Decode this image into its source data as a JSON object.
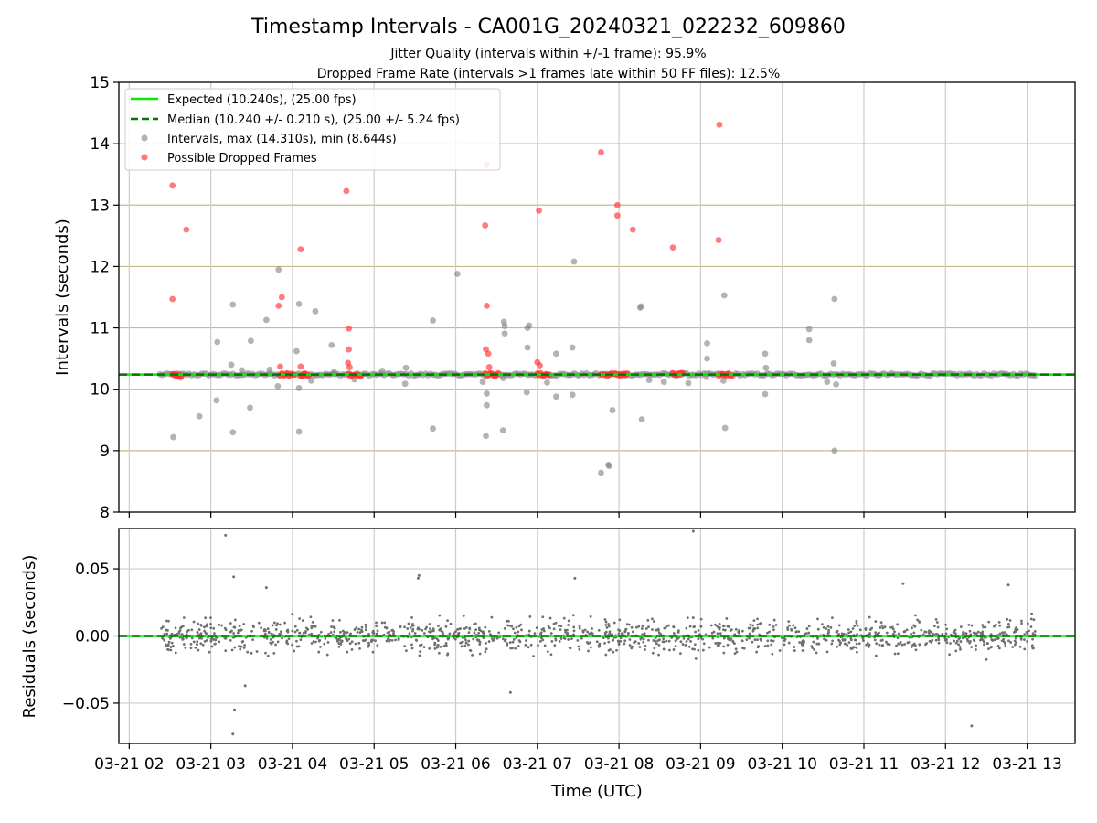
{
  "chart_data": {
    "title": "Timestamp Intervals - CA001G_20240321_022232_609860",
    "subtitle_1": "Jitter Quality (intervals within +/-1 frame): 95.9%",
    "subtitle_2": "Dropped Frame Rate (intervals >1 frames late within 50 FF files): 12.5%",
    "xlabel": "Time (UTC)",
    "x_tick_labels": [
      "03-21 02",
      "03-21 03",
      "03-21 04",
      "03-21 05",
      "03-21 06",
      "03-21 07",
      "03-21 08",
      "03-21 09",
      "03-21 10",
      "03-21 11",
      "03-21 12",
      "03-21 13"
    ],
    "x_tick_hours": [
      2,
      3,
      4,
      5,
      6,
      7,
      8,
      9,
      10,
      11,
      12,
      13
    ],
    "xlim_hours": [
      1.873,
      13.587
    ],
    "data_x_range_hours": [
      2.375,
      13.1
    ],
    "top": {
      "type": "scatter",
      "ylabel": "Intervals (seconds)",
      "ylim": [
        8,
        15
      ],
      "y_ticks": [
        8,
        9,
        10,
        11,
        12,
        13,
        14,
        15
      ],
      "expected_line": 10.24,
      "median_line": 10.24,
      "legend_position": "upper-left",
      "legend": [
        {
          "label": "Expected (10.240s), (25.00 fps)",
          "color": "#00ee00",
          "style": "solid"
        },
        {
          "label": "Median (10.240 +/- 0.210 s), (25.00 +/- 5.24 fps)",
          "color": "#007700",
          "style": "dashed"
        },
        {
          "label": "Intervals, max (14.310s), min (8.644s)",
          "color": "#808080",
          "style": "marker"
        },
        {
          "label": "Possible Dropped Frames",
          "color": "#ff3333",
          "style": "marker"
        }
      ],
      "series": [
        {
          "name": "Intervals, max (14.310s), min (8.644s)",
          "color": "#808080",
          "points": [
            [
              2.54,
              9.22
            ],
            [
              2.63,
              10.19
            ],
            [
              2.86,
              9.56
            ],
            [
              3.08,
              10.77
            ],
            [
              3.07,
              9.82
            ],
            [
              3.27,
              11.38
            ],
            [
              3.27,
              9.3
            ],
            [
              3.25,
              10.4
            ],
            [
              3.49,
              10.79
            ],
            [
              3.48,
              9.7
            ],
            [
              3.38,
              10.31
            ],
            [
              3.68,
              11.13
            ],
            [
              3.83,
              11.95
            ],
            [
              3.82,
              10.05
            ],
            [
              3.72,
              10.32
            ],
            [
              4.05,
              10.62
            ],
            [
              4.08,
              10.02
            ],
            [
              4.23,
              10.14
            ],
            [
              4.28,
              11.27
            ],
            [
              4.08,
              11.39
            ],
            [
              4.08,
              9.31
            ],
            [
              4.48,
              10.72
            ],
            [
              4.51,
              10.28
            ],
            [
              4.76,
              10.16
            ],
            [
              5.1,
              10.3
            ],
            [
              5.39,
              10.35
            ],
            [
              5.38,
              10.09
            ],
            [
              5.72,
              11.12
            ],
            [
              5.72,
              9.36
            ],
            [
              6.02,
              11.88
            ],
            [
              6.38,
              9.93
            ],
            [
              6.38,
              9.74
            ],
            [
              6.33,
              10.12
            ],
            [
              6.37,
              9.24
            ],
            [
              6.59,
              11.1
            ],
            [
              6.6,
              10.91
            ],
            [
              6.6,
              11.03
            ],
            [
              6.58,
              9.33
            ],
            [
              6.58,
              10.18
            ],
            [
              6.88,
              11.0
            ],
            [
              6.9,
              11.04
            ],
            [
              6.88,
              10.68
            ],
            [
              6.87,
              9.95
            ],
            [
              7.12,
              10.11
            ],
            [
              7.23,
              10.58
            ],
            [
              7.23,
              9.88
            ],
            [
              7.43,
              10.68
            ],
            [
              7.43,
              9.91
            ],
            [
              7.45,
              12.08
            ],
            [
              7.92,
              9.66
            ],
            [
              7.87,
              8.77
            ],
            [
              7.88,
              8.75
            ],
            [
              7.78,
              8.64
            ],
            [
              8.27,
              11.35
            ],
            [
              8.26,
              11.33
            ],
            [
              8.28,
              9.51
            ],
            [
              8.37,
              10.15
            ],
            [
              8.55,
              10.12
            ],
            [
              8.85,
              10.1
            ],
            [
              9.07,
              10.2
            ],
            [
              9.08,
              10.75
            ],
            [
              9.08,
              10.5
            ],
            [
              9.29,
              11.53
            ],
            [
              9.3,
              9.37
            ],
            [
              9.28,
              10.14
            ],
            [
              9.79,
              10.58
            ],
            [
              9.79,
              9.92
            ],
            [
              9.8,
              10.35
            ],
            [
              10.33,
              10.98
            ],
            [
              10.33,
              10.8
            ],
            [
              10.55,
              10.12
            ],
            [
              10.64,
              11.47
            ],
            [
              10.64,
              9.0
            ],
            [
              10.63,
              10.42
            ],
            [
              10.66,
              10.08
            ]
          ]
        },
        {
          "name": "Possible Dropped Frames",
          "color": "#ff3333",
          "points": [
            [
              2.53,
              13.32
            ],
            [
              2.53,
              11.47
            ],
            [
              2.7,
              12.6
            ],
            [
              3.83,
              11.36
            ],
            [
              3.87,
              11.5
            ],
            [
              3.85,
              10.37
            ],
            [
              4.1,
              12.28
            ],
            [
              4.1,
              10.37
            ],
            [
              4.66,
              13.23
            ],
            [
              4.69,
              10.99
            ],
            [
              4.69,
              10.65
            ],
            [
              4.68,
              10.43
            ],
            [
              4.7,
              10.36
            ],
            [
              6.38,
              13.66
            ],
            [
              6.36,
              12.67
            ],
            [
              6.38,
              11.36
            ],
            [
              6.37,
              10.65
            ],
            [
              6.4,
              10.58
            ],
            [
              6.41,
              10.36
            ],
            [
              7.02,
              12.91
            ],
            [
              7.0,
              10.44
            ],
            [
              7.03,
              10.39
            ],
            [
              7.78,
              13.86
            ],
            [
              7.98,
              13.0
            ],
            [
              7.98,
              12.83
            ],
            [
              8.17,
              12.6
            ],
            [
              8.66,
              12.31
            ],
            [
              9.23,
              14.31
            ],
            [
              9.22,
              12.43
            ]
          ]
        }
      ]
    },
    "bottom": {
      "type": "scatter",
      "ylabel": "Residuals (seconds)",
      "ylim": [
        -0.08,
        0.08
      ],
      "y_ticks": [
        -0.05,
        0.0,
        0.05
      ],
      "y_tick_labels": [
        "−0.05",
        "0.00",
        "0.05"
      ],
      "zero_line": 0.0,
      "color": "#707070",
      "outliers": [
        [
          3.18,
          0.075
        ],
        [
          3.28,
          0.044
        ],
        [
          3.29,
          -0.055
        ],
        [
          3.27,
          -0.073
        ],
        [
          3.42,
          -0.037
        ],
        [
          3.68,
          0.036
        ],
        [
          5.55,
          0.045
        ],
        [
          5.54,
          0.043
        ],
        [
          6.67,
          -0.042
        ],
        [
          7.46,
          0.043
        ],
        [
          8.91,
          0.078
        ],
        [
          11.48,
          0.039
        ],
        [
          12.32,
          -0.067
        ],
        [
          12.77,
          0.038
        ]
      ]
    }
  }
}
